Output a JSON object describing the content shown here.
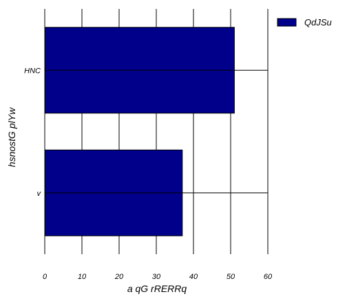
{
  "chart_data": {
    "type": "bar",
    "orientation": "horizontal",
    "categories": [
      "HNC",
      "v"
    ],
    "series": [
      {
        "name": "QdJSu",
        "values": [
          51,
          37
        ]
      }
    ],
    "xlabel": "a qG  rRERRq",
    "ylabel": "hsnostG plYw",
    "xlim": [
      0,
      60
    ],
    "xticks": [
      0,
      10,
      20,
      30,
      40,
      50,
      60
    ],
    "grid": "vertical",
    "legend": "top-right",
    "colors": {
      "bar": "#00008b",
      "grid": "#000000"
    }
  }
}
